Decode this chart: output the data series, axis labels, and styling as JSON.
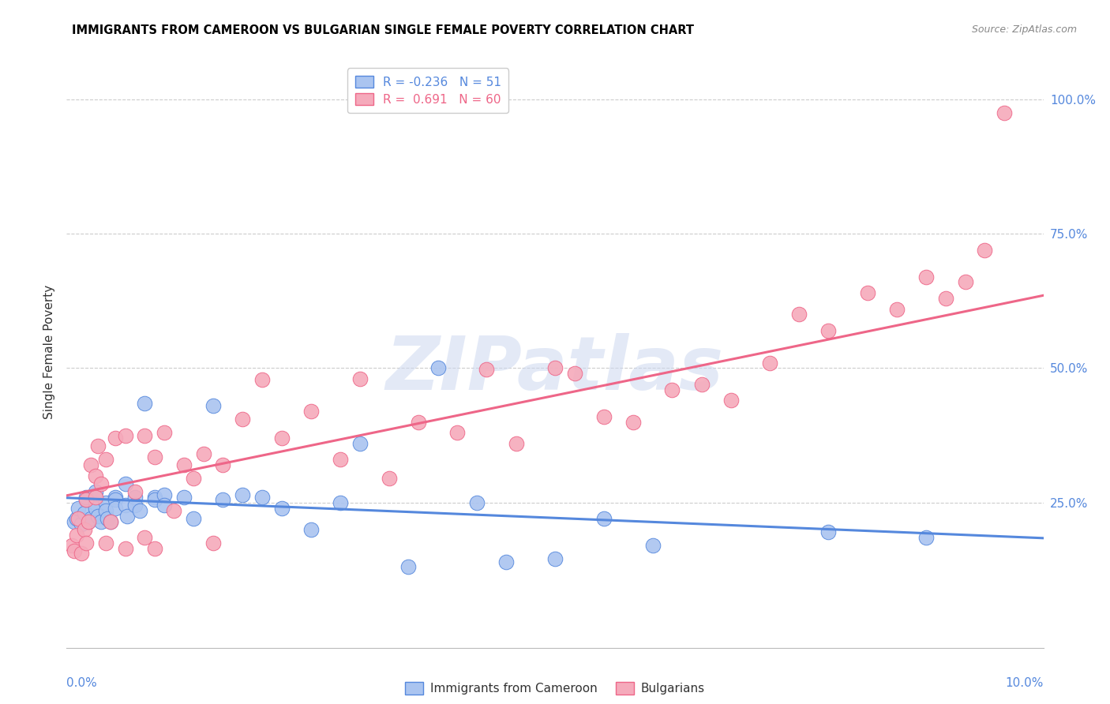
{
  "title": "IMMIGRANTS FROM CAMEROON VS BULGARIAN SINGLE FEMALE POVERTY CORRELATION CHART",
  "source": "Source: ZipAtlas.com",
  "ylabel": "Single Female Poverty",
  "legend_label1": "Immigrants from Cameroon",
  "legend_label2": "Bulgarians",
  "r1": -0.236,
  "n1": 51,
  "r2": 0.691,
  "n2": 60,
  "color1": "#aac4f0",
  "color2": "#f5aabb",
  "line_color1": "#5588dd",
  "line_color2": "#ee6688",
  "watermark_text": "ZIPatlas",
  "watermark_color": "#ccd8f0",
  "blue_points_x": [
    0.0008,
    0.001,
    0.0012,
    0.0015,
    0.0018,
    0.002,
    0.002,
    0.0022,
    0.0025,
    0.003,
    0.003,
    0.003,
    0.0032,
    0.0035,
    0.004,
    0.004,
    0.0042,
    0.0045,
    0.005,
    0.005,
    0.005,
    0.006,
    0.006,
    0.0062,
    0.007,
    0.007,
    0.0075,
    0.008,
    0.009,
    0.009,
    0.01,
    0.01,
    0.012,
    0.013,
    0.015,
    0.016,
    0.018,
    0.02,
    0.022,
    0.025,
    0.028,
    0.03,
    0.035,
    0.038,
    0.042,
    0.045,
    0.05,
    0.055,
    0.06,
    0.078,
    0.088
  ],
  "blue_points_y": [
    0.215,
    0.22,
    0.24,
    0.21,
    0.23,
    0.255,
    0.26,
    0.215,
    0.22,
    0.25,
    0.24,
    0.27,
    0.225,
    0.215,
    0.25,
    0.235,
    0.22,
    0.215,
    0.26,
    0.255,
    0.24,
    0.285,
    0.245,
    0.225,
    0.26,
    0.245,
    0.235,
    0.435,
    0.26,
    0.255,
    0.265,
    0.245,
    0.26,
    0.22,
    0.43,
    0.255,
    0.265,
    0.26,
    0.24,
    0.2,
    0.25,
    0.36,
    0.13,
    0.5,
    0.25,
    0.14,
    0.145,
    0.22,
    0.17,
    0.195,
    0.185
  ],
  "pink_points_x": [
    0.0005,
    0.0008,
    0.001,
    0.0012,
    0.0015,
    0.0018,
    0.002,
    0.002,
    0.0022,
    0.0025,
    0.003,
    0.003,
    0.0032,
    0.0035,
    0.004,
    0.004,
    0.0045,
    0.005,
    0.006,
    0.006,
    0.007,
    0.008,
    0.008,
    0.009,
    0.009,
    0.01,
    0.011,
    0.012,
    0.013,
    0.014,
    0.015,
    0.016,
    0.018,
    0.02,
    0.022,
    0.025,
    0.028,
    0.03,
    0.033,
    0.036,
    0.04,
    0.043,
    0.046,
    0.05,
    0.052,
    0.055,
    0.058,
    0.062,
    0.065,
    0.068,
    0.072,
    0.075,
    0.078,
    0.082,
    0.085,
    0.088,
    0.09,
    0.092,
    0.094,
    0.096
  ],
  "pink_points_y": [
    0.17,
    0.16,
    0.19,
    0.22,
    0.155,
    0.2,
    0.175,
    0.255,
    0.215,
    0.32,
    0.3,
    0.26,
    0.355,
    0.285,
    0.175,
    0.33,
    0.215,
    0.37,
    0.165,
    0.375,
    0.27,
    0.375,
    0.185,
    0.335,
    0.165,
    0.38,
    0.235,
    0.32,
    0.295,
    0.34,
    0.175,
    0.32,
    0.405,
    0.478,
    0.37,
    0.42,
    0.33,
    0.48,
    0.295,
    0.4,
    0.38,
    0.498,
    0.36,
    0.5,
    0.49,
    0.41,
    0.4,
    0.46,
    0.47,
    0.44,
    0.51,
    0.6,
    0.57,
    0.64,
    0.61,
    0.67,
    0.63,
    0.66,
    0.72,
    0.975
  ],
  "xlim": [
    0.0,
    0.1
  ],
  "ylim": [
    -0.02,
    1.08
  ],
  "yticks": [
    0.25,
    0.5,
    0.75,
    1.0
  ],
  "ytick_labels": [
    "25.0%",
    "50.0%",
    "75.0%",
    "100.0%"
  ]
}
